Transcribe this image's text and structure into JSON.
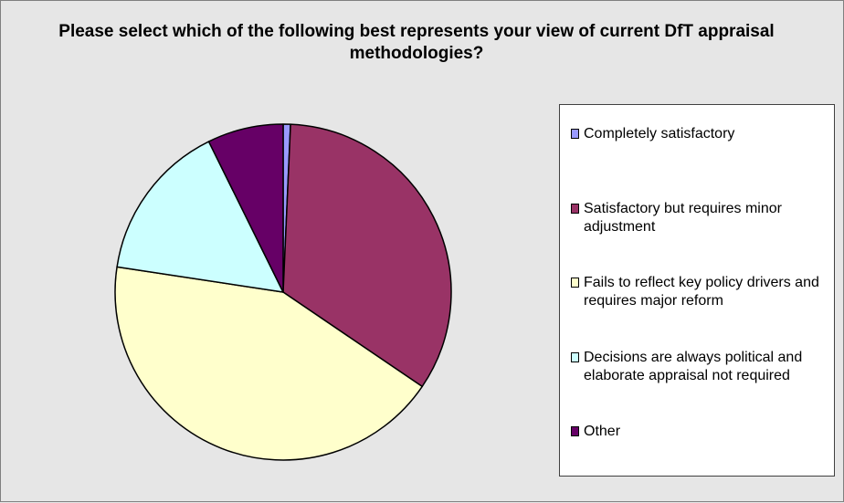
{
  "chart_data": {
    "type": "pie",
    "title": "Please select which of the following best represents your view of current DfT appraisal methodologies?",
    "categories": [
      "Completely satisfactory",
      "Satisfactory but requires minor adjustment",
      "Fails to reflect key policy drivers and requires major reform",
      "Decisions are always political and elaborate appraisal not required",
      "Other"
    ],
    "values": [
      0.7,
      33.8,
      42.9,
      15.3,
      7.3
    ],
    "colors": [
      "#9999ff",
      "#993366",
      "#ffffcc",
      "#ccffff",
      "#660066"
    ],
    "legend_position": "right"
  }
}
